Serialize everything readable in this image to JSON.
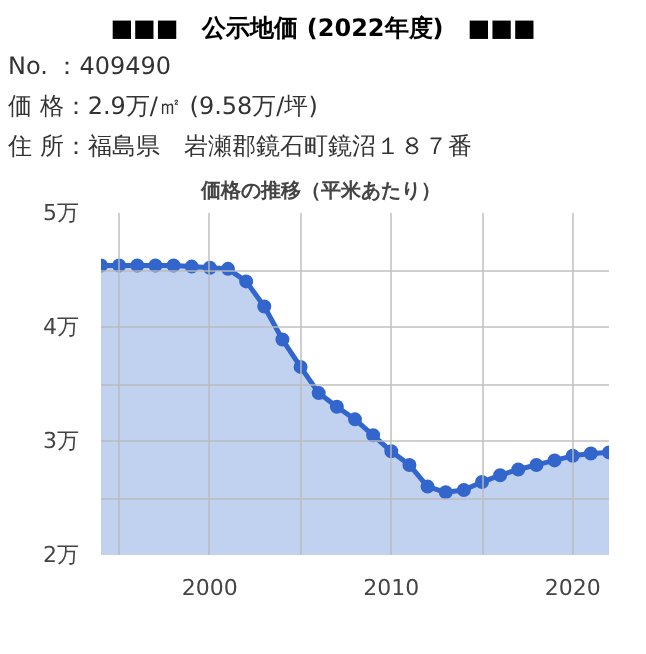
{
  "chart_data": {
    "type": "area",
    "title": "■■■　公示地価 (2022年度)　■■■",
    "subtitle": "価格の推移（平米あたり）",
    "annotations": [
      "No. ：409490",
      "価 格：2.9万/㎡ (9.58万/坪)",
      "住 所：福島県　岩瀬郡鏡石町鏡沼１８７番"
    ],
    "x": [
      1994,
      1995,
      1996,
      1997,
      1998,
      1999,
      2000,
      2001,
      2002,
      2003,
      2004,
      2005,
      2006,
      2007,
      2008,
      2009,
      2010,
      2011,
      2012,
      2013,
      2014,
      2015,
      2016,
      2017,
      2018,
      2019,
      2020,
      2021,
      2022
    ],
    "series": [
      {
        "color": "#3366cc",
        "values": [
          4.54,
          4.54,
          4.54,
          4.54,
          4.54,
          4.53,
          4.52,
          4.51,
          4.4,
          4.18,
          3.89,
          3.65,
          3.42,
          3.3,
          3.19,
          3.05,
          2.91,
          2.79,
          2.6,
          2.55,
          2.57,
          2.64,
          2.7,
          2.75,
          2.79,
          2.83,
          2.87,
          2.89,
          2.9
        ]
      }
    ],
    "xlim": [
      1994,
      2022
    ],
    "ylim": [
      2,
      5
    ],
    "xticks": [
      {
        "value": 1995,
        "label": null
      },
      2000,
      {
        "value": 2005,
        "label": null
      },
      2010,
      {
        "value": 2015,
        "label": null
      },
      2020
    ],
    "yticks": [
      {
        "value": 2,
        "label": "2万"
      },
      {
        "value": 2.5,
        "label": null
      },
      {
        "value": 3,
        "label": "3万"
      },
      {
        "value": 3.5,
        "label": null
      },
      {
        "value": 4,
        "label": "4万"
      },
      {
        "value": 4.5,
        "label": null
      },
      {
        "value": 5,
        "label": "5万"
      }
    ],
    "grid": true,
    "marker": "circle",
    "line_style": "solid"
  }
}
